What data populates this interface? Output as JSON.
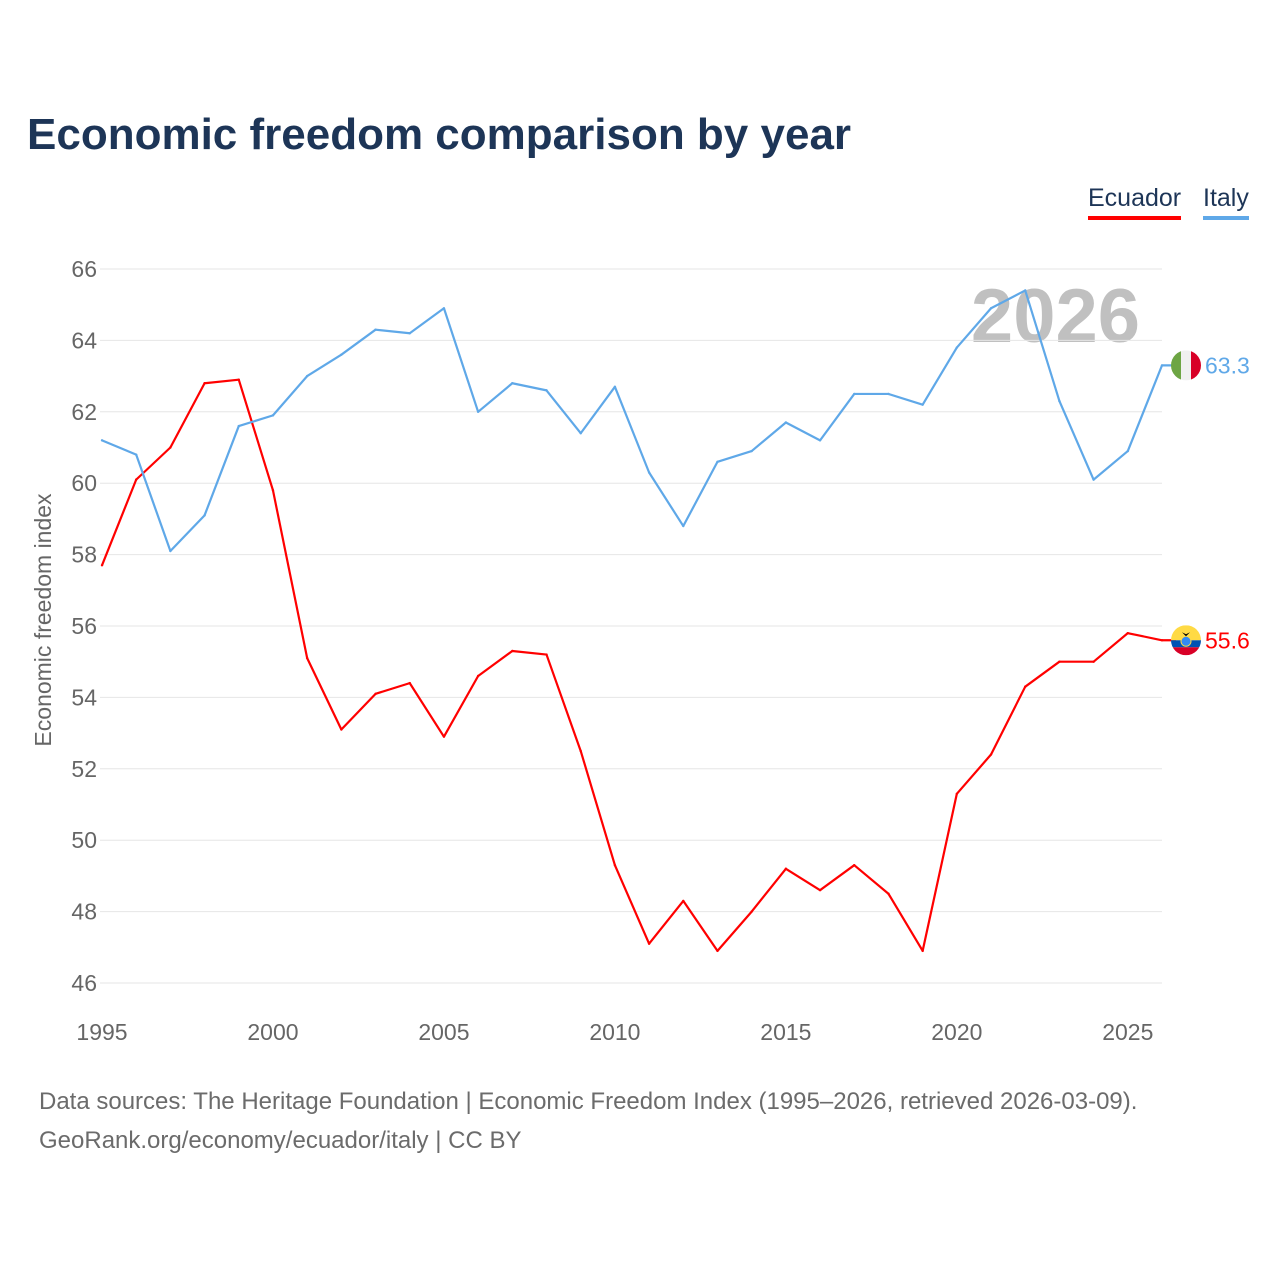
{
  "title": "Economic freedom comparison by year",
  "footer": {
    "line1": "Data sources: The Heritage Foundation | Economic Freedom Index (1995–2026, retrieved 2026-03-09).",
    "line2": "GeoRank.org/economy/ecuador/italy | CC BY"
  },
  "chart_data": {
    "type": "line",
    "title": "Economic freedom comparison by year",
    "xlabel": "",
    "ylabel": "Economic freedom index",
    "xlim": [
      1995,
      2026
    ],
    "ylim": [
      46,
      66
    ],
    "xticks": [
      "1995",
      "2000",
      "2005",
      "2010",
      "2015",
      "2020",
      "2025"
    ],
    "yticks": [
      "46",
      "48",
      "50",
      "52",
      "54",
      "56",
      "58",
      "60",
      "62",
      "64",
      "66"
    ],
    "grid": true,
    "legend_position": "top-right",
    "year_watermark": "2026",
    "x": [
      1995,
      1996,
      1997,
      1998,
      1999,
      2000,
      2001,
      2002,
      2003,
      2004,
      2005,
      2006,
      2007,
      2008,
      2009,
      2010,
      2011,
      2012,
      2013,
      2014,
      2015,
      2016,
      2017,
      2018,
      2019,
      2020,
      2021,
      2022,
      2023,
      2024,
      2025,
      2026
    ],
    "series": [
      {
        "name": "Ecuador",
        "color": "#ff0000",
        "end_label": "55.6",
        "flag": "ecuador-flag",
        "values": [
          57.7,
          60.1,
          61.0,
          62.8,
          62.9,
          59.8,
          55.1,
          53.1,
          54.1,
          54.4,
          52.9,
          54.6,
          55.3,
          55.2,
          52.5,
          49.3,
          47.1,
          48.3,
          46.9,
          48.0,
          49.2,
          48.6,
          49.3,
          48.5,
          46.9,
          51.3,
          52.4,
          54.3,
          55.0,
          55.0,
          55.8,
          55.6
        ]
      },
      {
        "name": "Italy",
        "color": "#5fa8e8",
        "end_label": "63.3",
        "flag": "italy-flag",
        "values": [
          61.2,
          60.8,
          58.1,
          59.1,
          61.6,
          61.9,
          63.0,
          63.6,
          64.3,
          64.2,
          64.9,
          62.0,
          62.8,
          62.6,
          61.4,
          62.7,
          60.3,
          58.8,
          60.6,
          60.9,
          61.7,
          61.2,
          62.5,
          62.5,
          62.2,
          63.8,
          64.9,
          65.4,
          62.3,
          60.1,
          60.9,
          63.3
        ]
      }
    ]
  }
}
